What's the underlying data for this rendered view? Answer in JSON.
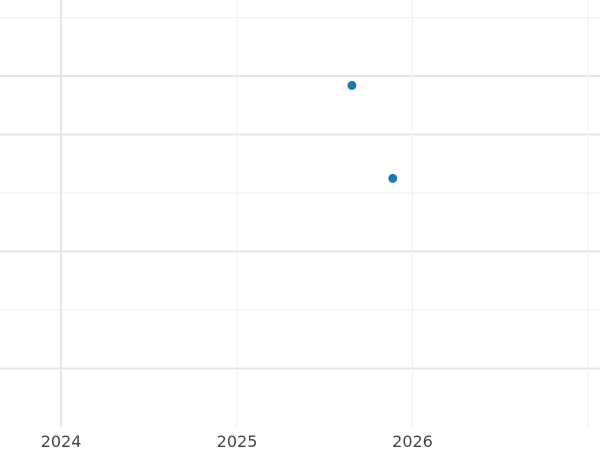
{
  "chart_data": {
    "type": "scatter",
    "title": "",
    "xlabel": "",
    "ylabel": "",
    "x_axis_type": "date",
    "x_ticks": [
      "2024",
      "2025",
      "2026",
      "2027"
    ],
    "x_tick_labels_visible": [
      "2024",
      "2025",
      "2026"
    ],
    "xlim": [
      "2023-08-27",
      "2027-01-26"
    ],
    "ylim": [
      0,
      7.3
    ],
    "y_ticks": [
      1,
      2,
      3,
      4,
      5,
      6,
      7
    ],
    "y_tick_labels_visible": false,
    "grid": true,
    "legend": "none",
    "series": [
      {
        "color": "#1f77b4",
        "points": [
          {
            "x": "2025-08-28",
            "y": 5.84
          },
          {
            "x": "2025-11-21",
            "y": 4.25
          }
        ]
      }
    ]
  }
}
